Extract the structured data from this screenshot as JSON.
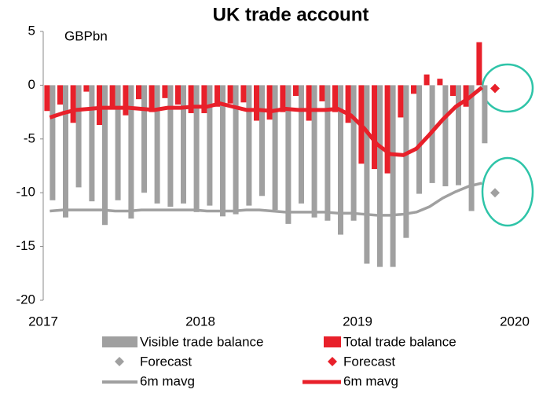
{
  "chart_data": {
    "type": "bar",
    "title": "UK trade account",
    "y_label": "GBPbn",
    "x": [
      2017.042,
      2017.125,
      2017.208,
      2017.292,
      2017.375,
      2017.458,
      2017.542,
      2017.625,
      2017.708,
      2017.792,
      2017.875,
      2017.958,
      2018.042,
      2018.125,
      2018.208,
      2018.292,
      2018.375,
      2018.458,
      2018.542,
      2018.625,
      2018.708,
      2018.792,
      2018.875,
      2018.958,
      2019.042,
      2019.125,
      2019.208,
      2019.292,
      2019.375,
      2019.458,
      2019.542,
      2019.625,
      2019.708,
      2019.792
    ],
    "xlim": [
      2017,
      2020
    ],
    "xticks": [
      2017,
      2018,
      2019,
      2020
    ],
    "ylim": [
      -20,
      5
    ],
    "yticks": [
      5,
      0,
      -5,
      -10,
      -15,
      -20
    ],
    "series": [
      {
        "name": "Visible trade balance",
        "type": "bar",
        "color": "#a0a0a0",
        "values": [
          -10.7,
          -12.3,
          -9.5,
          -10.8,
          -13.0,
          -10.7,
          -12.4,
          -10.0,
          -11.0,
          -11.3,
          -11.0,
          -11.8,
          -11.2,
          -12.2,
          -12.0,
          -11.2,
          -10.3,
          -11.6,
          -12.9,
          -11.0,
          -12.3,
          -12.6,
          -13.9,
          -12.6,
          -16.6,
          -16.9,
          -16.9,
          -14.2,
          -10.1,
          -9.1,
          -9.4,
          -9.3,
          -11.7,
          -5.4
        ]
      },
      {
        "name": "Total trade balance",
        "type": "bar",
        "color": "#e8202a",
        "values": [
          -2.4,
          -1.8,
          -3.5,
          -0.6,
          -3.7,
          -2.2,
          -2.8,
          -1.3,
          -2.5,
          -1.2,
          -1.8,
          -2.6,
          -2.6,
          -2.0,
          -1.7,
          -1.6,
          -3.3,
          -3.2,
          -2.5,
          -1.0,
          -3.3,
          -1.5,
          -2.5,
          -3.5,
          -7.3,
          -7.8,
          -8.2,
          -3.0,
          -0.8,
          1.0,
          0.6,
          -1.0,
          -2.0,
          4.0
        ]
      },
      {
        "name": "Forecast",
        "type": "scatter",
        "color": "#a0a0a0",
        "x": [
          2019.875
        ],
        "values": [
          -10
        ]
      },
      {
        "name": "Forecast",
        "type": "scatter",
        "color": "#e8202a",
        "x": [
          2019.875
        ],
        "values": [
          -0.3
        ]
      },
      {
        "name": "6m mavg",
        "type": "line",
        "color": "#a0a0a0",
        "values": [
          -11.7,
          -11.6,
          -11.6,
          -11.6,
          -11.6,
          -11.7,
          -11.7,
          -11.6,
          -11.6,
          -11.6,
          -11.6,
          -11.6,
          -11.7,
          -11.7,
          -11.7,
          -11.6,
          -11.6,
          -11.7,
          -11.8,
          -11.8,
          -11.8,
          -11.8,
          -11.9,
          -11.9,
          -12.0,
          -12.1,
          -12.1,
          -12.0,
          -11.8,
          -11.3,
          -10.5,
          -9.9,
          -9.4,
          -9.1
        ]
      },
      {
        "name": "6m mavg",
        "type": "line",
        "color": "#e8202a",
        "values": [
          -3.0,
          -2.6,
          -2.3,
          -2.2,
          -2.1,
          -2.1,
          -2.1,
          -2.2,
          -2.3,
          -2.1,
          -2.1,
          -2.0,
          -2.0,
          -1.7,
          -2.0,
          -2.3,
          -2.3,
          -2.4,
          -2.2,
          -2.3,
          -2.3,
          -2.3,
          -2.2,
          -2.8,
          -4.0,
          -5.5,
          -6.4,
          -6.5,
          -5.9,
          -4.6,
          -3.2,
          -2.0,
          -1.2,
          -0.2
        ]
      }
    ]
  }
}
